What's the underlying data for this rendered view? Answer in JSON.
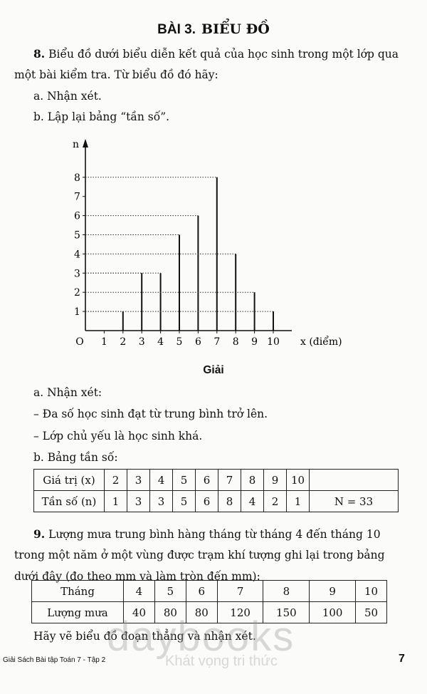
{
  "title": {
    "prefix": "BÀI 3.",
    "name": "BIỂU ĐỒ"
  },
  "problem8": {
    "number": "8.",
    "line1": " Biểu đồ dưới biểu diễn kết quả của học sinh trong một lớp qua",
    "line2": "một bài kiểm tra. Từ biểu đồ đó hãy:",
    "a": "a. Nhận xét.",
    "b": "b. Lập lại bảng “tần số”."
  },
  "chart_data": {
    "type": "bar",
    "x": [
      2,
      3,
      4,
      5,
      6,
      7,
      8,
      9,
      10
    ],
    "values": [
      1,
      3,
      3,
      5,
      6,
      8,
      4,
      2,
      1
    ],
    "xticks": [
      "O",
      "1",
      "2",
      "3",
      "4",
      "5",
      "6",
      "7",
      "8",
      "9",
      "10"
    ],
    "yticks": [
      "1",
      "2",
      "3",
      "4",
      "5",
      "6",
      "7",
      "8"
    ],
    "xlabel": "x (điểm)",
    "ylabel": "n",
    "xlim": [
      0,
      10
    ],
    "ylim": [
      0,
      8
    ],
    "grid": false
  },
  "solution": {
    "heading": "Giải",
    "a": "a. Nhận xét:",
    "a1": "– Đa số học sinh đạt từ trung bình trở lên.",
    "a2": "– Lớp chủ yếu là học sinh khá.",
    "b": "b. Bảng tần số:",
    "table": {
      "row1": [
        "Giá trị (x)",
        "2",
        "3",
        "4",
        "5",
        "6",
        "7",
        "8",
        "9",
        "10",
        ""
      ],
      "row2": [
        "Tần số (n)",
        "1",
        "3",
        "3",
        "5",
        "6",
        "8",
        "4",
        "2",
        "1",
        "N = 33"
      ]
    }
  },
  "problem9": {
    "number": "9.",
    "line1": " Lượng mưa trung bình hàng tháng từ tháng 4 đến tháng 10",
    "line2": "trong một năm ở một vùng được trạm khí tượng ghi lại trong bảng",
    "line3": "dưới đây (đo theo mm và làm tròn đến mm):",
    "table": {
      "row1": [
        "Tháng",
        "4",
        "5",
        "6",
        "7",
        "8",
        "9",
        "10"
      ],
      "row2": [
        "Lượng mưa",
        "40",
        "80",
        "80",
        "120",
        "150",
        "100",
        "50"
      ]
    },
    "task": "Hãy vẽ biểu đồ đoạn thẳng và nhận xét."
  },
  "watermark": {
    "brand": "daybooks",
    "slogan": "Khát vọng tri thức"
  },
  "footer": {
    "book": "Giải Sách Bài tập Toán 7 - Tập 2",
    "page": "7"
  }
}
